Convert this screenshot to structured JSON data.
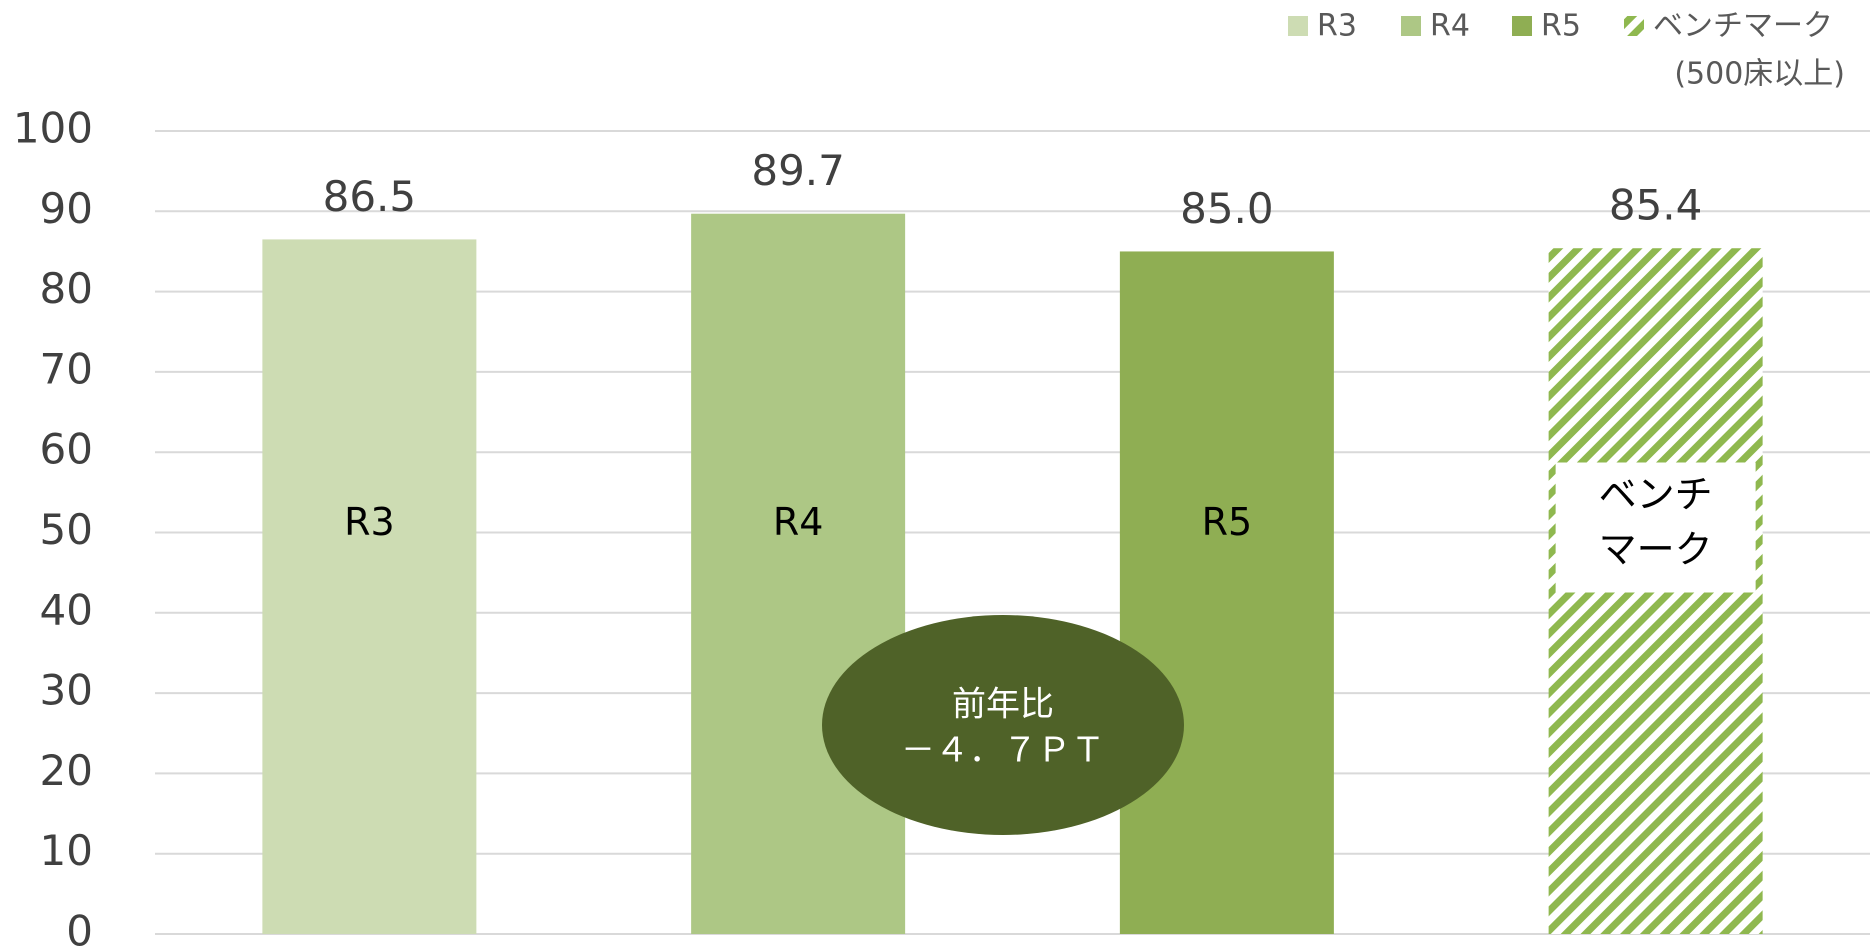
{
  "chart_data": {
    "type": "bar",
    "categories": [
      [
        "R3"
      ],
      [
        "R4"
      ],
      [
        "R5"
      ],
      [
        "ベンチ",
        "マーク"
      ]
    ],
    "values": [
      86.5,
      89.7,
      85.0,
      85.4
    ],
    "value_labels": [
      "86.5",
      "89.7",
      "85.0",
      "85.4"
    ],
    "colors": [
      "#cddcb3",
      "#adc785",
      "#8fae53",
      "#8fb84f"
    ],
    "patterns": [
      "solid",
      "solid",
      "solid",
      "hatch"
    ],
    "legend": [
      [
        "R3"
      ],
      [
        "R4"
      ],
      [
        "R5"
      ],
      [
        "ベンチマーク",
        "(500床以上)"
      ]
    ],
    "legend_position": "top-right",
    "ylim": [
      0,
      100
    ],
    "yticks": [
      0,
      10,
      20,
      30,
      40,
      50,
      60,
      70,
      80,
      90,
      100
    ],
    "grid": true,
    "annotation": {
      "lines": [
        "前年比",
        "－４．７ＰＴ"
      ],
      "color": "#4f6228"
    }
  }
}
